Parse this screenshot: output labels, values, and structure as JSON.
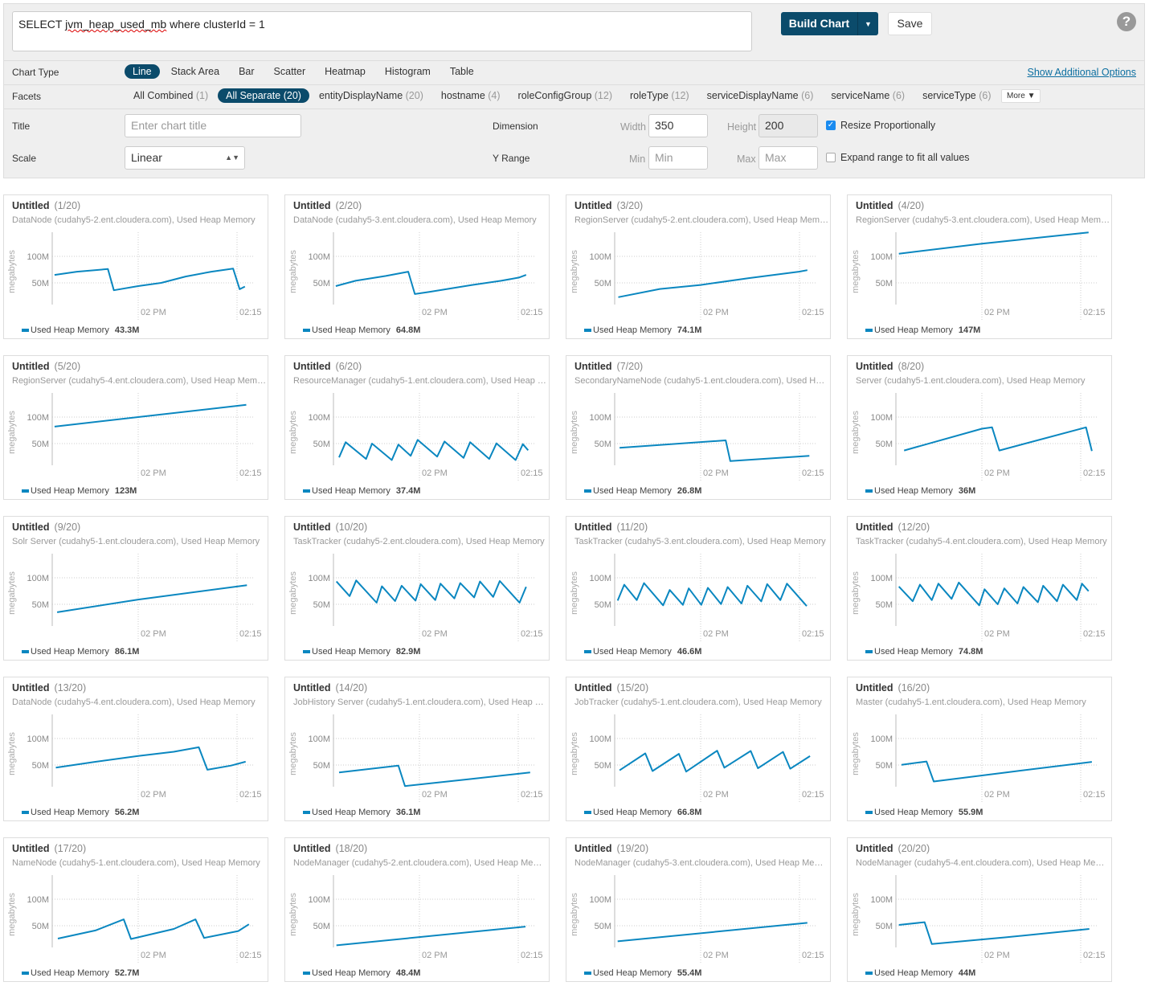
{
  "query": {
    "prefix": "SELECT ",
    "metric": "jvm_heap_used_mb",
    "suffix": " where clusterId = 1"
  },
  "toolbar": {
    "build_label": "Build Chart",
    "save_label": "Save",
    "help": "?"
  },
  "chart_type": {
    "label": "Chart Type",
    "options": [
      "Line",
      "Stack Area",
      "Bar",
      "Scatter",
      "Heatmap",
      "Histogram",
      "Table"
    ],
    "active": "Line",
    "show_options": "Show Additional Options"
  },
  "facets": {
    "label": "Facets",
    "items": [
      {
        "name": "All Combined",
        "count": "(1)"
      },
      {
        "name": "All Separate",
        "count": "(20)",
        "active": true
      },
      {
        "name": "entityDisplayName",
        "count": "(20)"
      },
      {
        "name": "hostname",
        "count": "(4)"
      },
      {
        "name": "roleConfigGroup",
        "count": "(12)"
      },
      {
        "name": "roleType",
        "count": "(12)"
      },
      {
        "name": "serviceDisplayName",
        "count": "(6)"
      },
      {
        "name": "serviceName",
        "count": "(6)"
      },
      {
        "name": "serviceType",
        "count": "(6)"
      }
    ],
    "more": "More"
  },
  "settings": {
    "title_label": "Title",
    "title_placeholder": "Enter chart title",
    "scale_label": "Scale",
    "scale_value": "Linear",
    "dimension_label": "Dimension",
    "width_label": "Width",
    "width_value": "350",
    "height_label": "Height",
    "height_value": "200",
    "resize_label": "Resize Proportionally",
    "resize_checked": true,
    "yrange_label": "Y Range",
    "min_label": "Min",
    "min_placeholder": "Min",
    "max_label": "Max",
    "max_placeholder": "Max",
    "expand_label": "Expand range to fit all values",
    "expand_checked": false
  },
  "colors": {
    "accent": "#0b4b6b",
    "series": "#0a87c0"
  },
  "chart_data": [
    {
      "type": "line",
      "title": "Untitled",
      "index": "(1/20)",
      "subtitle": "DataNode (cudahy5-2.ent.cloudera.com), Used Heap Memory",
      "ylabel": "megabytes",
      "yticks": [
        "50M",
        "100M"
      ],
      "xticks": [
        "02 PM",
        "02:15"
      ],
      "legend": "Used Heap Memory",
      "current": "43.3M",
      "points": [
        [
          "13:47:18",
          65
        ],
        [
          "13:50:42",
          71
        ],
        [
          "13:55:24",
          76
        ],
        [
          "13:56:18",
          36
        ],
        [
          "14:00:00",
          44
        ],
        [
          "14:03:30",
          50
        ],
        [
          "14:07:12",
          62
        ],
        [
          "14:11:06",
          71
        ],
        [
          "14:14:24",
          77
        ],
        [
          "14:15:24",
          38
        ],
        [
          "14:16:12",
          43
        ]
      ]
    },
    {
      "type": "line",
      "title": "Untitled",
      "index": "(2/20)",
      "subtitle": "DataNode (cudahy5-3.ent.cloudera.com), Used Heap Memory",
      "ylabel": "megabytes",
      "yticks": [
        "50M",
        "100M"
      ],
      "xticks": [
        "02 PM",
        "02:15"
      ],
      "legend": "Used Heap Memory",
      "current": "64.8M",
      "points": [
        [
          "13:47:18",
          44
        ],
        [
          "13:50:18",
          54
        ],
        [
          "13:54:54",
          63
        ],
        [
          "13:58:18",
          71
        ],
        [
          "13:59:18",
          29
        ],
        [
          "14:01:30",
          33
        ],
        [
          "14:08:00",
          46
        ],
        [
          "14:12:24",
          54
        ],
        [
          "14:15:06",
          60
        ],
        [
          "14:16:12",
          65
        ]
      ]
    },
    {
      "type": "line",
      "title": "Untitled",
      "index": "(3/20)",
      "subtitle": "RegionServer (cudahy5-2.ent.cloudera.com), Used Heap Mem…",
      "ylabel": "megabytes",
      "yticks": [
        "50M",
        "100M"
      ],
      "xticks": [
        "02 PM",
        "02:15"
      ],
      "legend": "Used Heap Memory",
      "current": "74.1M",
      "points": [
        [
          "13:47:30",
          23
        ],
        [
          "13:53:48",
          38.5
        ],
        [
          "14:00:00",
          46
        ],
        [
          "14:07:18",
          59
        ],
        [
          "14:14:54",
          71
        ],
        [
          "14:16:12",
          74
        ]
      ]
    },
    {
      "type": "line",
      "title": "Untitled",
      "index": "(4/20)",
      "subtitle": "RegionServer (cudahy5-3.ent.cloudera.com), Used Heap Mem…",
      "ylabel": "megabytes",
      "yticks": [
        "50M",
        "100M"
      ],
      "xticks": [
        "02 PM",
        "02:15"
      ],
      "legend": "Used Heap Memory",
      "current": "147M",
      "points": [
        [
          "13:47:24",
          105
        ],
        [
          "14:00:00",
          124
        ],
        [
          "14:16:12",
          145
        ]
      ]
    },
    {
      "type": "line",
      "title": "Untitled",
      "index": "(5/20)",
      "subtitle": "RegionServer (cudahy5-4.ent.cloudera.com), Used Heap Mem…",
      "ylabel": "megabytes",
      "yticks": [
        "50M",
        "100M"
      ],
      "xticks": [
        "02 PM",
        "02:15"
      ],
      "legend": "Used Heap Memory",
      "current": "123M",
      "points": [
        [
          "13:47:18",
          82
        ],
        [
          "14:00:00",
          100
        ],
        [
          "14:16:24",
          123
        ]
      ]
    },
    {
      "type": "line",
      "title": "Untitled",
      "index": "(6/20)",
      "subtitle": "ResourceManager (cudahy5-1.ent.cloudera.com), Used Heap …",
      "ylabel": "megabytes",
      "yticks": [
        "50M",
        "100M"
      ],
      "xticks": [
        "02 PM",
        "02:15"
      ],
      "legend": "Used Heap Memory",
      "current": "37.4M",
      "points": [
        [
          "13:47:48",
          24
        ],
        [
          "13:48:48",
          52.6
        ],
        [
          "13:51:54",
          21
        ],
        [
          "13:52:48",
          50
        ],
        [
          "13:55:48",
          19
        ],
        [
          "13:56:48",
          48
        ],
        [
          "13:58:40",
          27
        ],
        [
          "13:59:44",
          57
        ],
        [
          "14:02:42",
          25.5
        ],
        [
          "14:03:48",
          54
        ],
        [
          "14:06:42",
          23
        ],
        [
          "14:07:42",
          52.6
        ],
        [
          "14:10:36",
          21
        ],
        [
          "14:11:42",
          50.5
        ],
        [
          "14:14:36",
          19
        ],
        [
          "14:15:42",
          49
        ],
        [
          "14:16:30",
          37.4
        ]
      ]
    },
    {
      "type": "line",
      "title": "Untitled",
      "index": "(7/20)",
      "subtitle": "SecondaryNameNode (cudahy5-1.ent.cloudera.com), Used H…",
      "ylabel": "megabytes",
      "yticks": [
        "50M",
        "100M"
      ],
      "xticks": [
        "02 PM",
        "02:15"
      ],
      "legend": "Used Heap Memory",
      "current": "26.8M",
      "points": [
        [
          "13:47:42",
          42
        ],
        [
          "14:03:48",
          56
        ],
        [
          "14:04:30",
          17
        ],
        [
          "14:16:30",
          26.8
        ]
      ]
    },
    {
      "type": "line",
      "title": "Untitled",
      "index": "(8/20)",
      "subtitle": "Server (cudahy5-1.ent.cloudera.com), Used Heap Memory",
      "ylabel": "megabytes",
      "yticks": [
        "50M",
        "100M"
      ],
      "xticks": [
        "02 PM",
        "02:15"
      ],
      "legend": "Used Heap Memory",
      "current": "36M",
      "points": [
        [
          "13:48:12",
          37
        ],
        [
          "14:00:00",
          78
        ],
        [
          "14:01:33",
          80.6
        ],
        [
          "14:02:39",
          37
        ],
        [
          "14:15:48",
          80.6
        ],
        [
          "14:16:42",
          36
        ]
      ]
    },
    {
      "type": "line",
      "title": "Untitled",
      "index": "(9/20)",
      "subtitle": "Solr Server (cudahy5-1.ent.cloudera.com), Used Heap Memory",
      "ylabel": "megabytes",
      "yticks": [
        "50M",
        "100M"
      ],
      "xticks": [
        "02 PM",
        "02:15"
      ],
      "legend": "Used Heap Memory",
      "current": "86.1M",
      "points": [
        [
          "13:47:42",
          35
        ],
        [
          "14:00:00",
          59
        ],
        [
          "14:16:30",
          86.1
        ]
      ]
    },
    {
      "type": "line",
      "title": "Untitled",
      "index": "(10/20)",
      "subtitle": "TaskTracker (cudahy5-2.ent.cloudera.com), Used Heap Memory",
      "ylabel": "megabytes",
      "yticks": [
        "50M",
        "100M"
      ],
      "xticks": [
        "02 PM",
        "02:15"
      ],
      "legend": "Used Heap Memory",
      "current": "82.9M",
      "points": [
        [
          "13:47:24",
          93
        ],
        [
          "13:49:24",
          65.5
        ],
        [
          "13:50:24",
          95
        ],
        [
          "13:53:30",
          53
        ],
        [
          "13:54:18",
          84
        ],
        [
          "13:56:18",
          56
        ],
        [
          "13:57:18",
          85
        ],
        [
          "13:59:24",
          57
        ],
        [
          "14:00:12",
          88
        ],
        [
          "14:02:24",
          58
        ],
        [
          "14:03:12",
          89
        ],
        [
          "14:05:18",
          61
        ],
        [
          "14:06:12",
          90
        ],
        [
          "14:08:18",
          63
        ],
        [
          "14:09:12",
          93
        ],
        [
          "14:11:12",
          64
        ],
        [
          "14:12:12",
          94
        ],
        [
          "14:15:12",
          53
        ],
        [
          "14:16:12",
          82.9
        ]
      ]
    },
    {
      "type": "line",
      "title": "Untitled",
      "index": "(11/20)",
      "subtitle": "TaskTracker (cudahy5-3.ent.cloudera.com), Used Heap Memory",
      "ylabel": "megabytes",
      "yticks": [
        "50M",
        "100M"
      ],
      "xticks": [
        "02 PM",
        "02:15"
      ],
      "legend": "Used Heap Memory",
      "current": "46.6M",
      "points": [
        [
          "13:47:24",
          57
        ],
        [
          "13:48:24",
          87
        ],
        [
          "13:50:18",
          58
        ],
        [
          "13:51:24",
          90
        ],
        [
          "13:54:18",
          48
        ],
        [
          "13:55:18",
          77
        ],
        [
          "13:57:18",
          49
        ],
        [
          "13:58:12",
          80
        ],
        [
          "14:00:06",
          49
        ],
        [
          "14:01:06",
          81
        ],
        [
          "14:03:06",
          50.5
        ],
        [
          "14:04:06",
          82.5
        ],
        [
          "14:06:12",
          51.5
        ],
        [
          "14:07:06",
          85
        ],
        [
          "14:09:12",
          55.5
        ],
        [
          "14:10:06",
          88
        ],
        [
          "14:12:06",
          58
        ],
        [
          "14:13:06",
          89
        ],
        [
          "14:16:06",
          46.6
        ]
      ]
    },
    {
      "type": "line",
      "title": "Untitled",
      "index": "(12/20)",
      "subtitle": "TaskTracker (cudahy5-4.ent.cloudera.com), Used Heap Memory",
      "ylabel": "megabytes",
      "yticks": [
        "50M",
        "100M"
      ],
      "xticks": [
        "02 PM",
        "02:15"
      ],
      "legend": "Used Heap Memory",
      "current": "74.8M",
      "points": [
        [
          "13:47:24",
          83.5
        ],
        [
          "13:49:30",
          55.7
        ],
        [
          "13:50:36",
          87
        ],
        [
          "13:52:24",
          58
        ],
        [
          "13:53:24",
          89
        ],
        [
          "13:55:24",
          60.3
        ],
        [
          "13:56:30",
          91
        ],
        [
          "13:59:36",
          48
        ],
        [
          "14:00:24",
          78.4
        ],
        [
          "14:02:24",
          50
        ],
        [
          "14:03:24",
          80
        ],
        [
          "14:05:24",
          51.5
        ],
        [
          "14:06:18",
          82.5
        ],
        [
          "14:08:30",
          54
        ],
        [
          "14:09:18",
          85
        ],
        [
          "14:11:24",
          55.7
        ],
        [
          "14:12:18",
          87
        ],
        [
          "14:14:24",
          58
        ],
        [
          "14:15:12",
          89
        ],
        [
          "14:16:12",
          74.8
        ]
      ]
    },
    {
      "type": "line",
      "title": "Untitled",
      "index": "(13/20)",
      "subtitle": "DataNode (cudahy5-4.ent.cloudera.com), Used Heap Memory",
      "ylabel": "megabytes",
      "yticks": [
        "50M",
        "100M"
      ],
      "xticks": [
        "02 PM",
        "02:15"
      ],
      "legend": "Used Heap Memory",
      "current": "56.2M",
      "points": [
        [
          "13:47:30",
          45
        ],
        [
          "13:53:30",
          56
        ],
        [
          "14:00:00",
          67
        ],
        [
          "14:05:24",
          75
        ],
        [
          "14:09:12",
          83.5
        ],
        [
          "14:10:30",
          41
        ],
        [
          "14:14:06",
          49
        ],
        [
          "14:16:18",
          56.2
        ]
      ]
    },
    {
      "type": "line",
      "title": "Untitled",
      "index": "(14/20)",
      "subtitle": "JobHistory Server (cudahy5-1.ent.cloudera.com), Used Heap …",
      "ylabel": "megabytes",
      "yticks": [
        "50M",
        "100M"
      ],
      "xticks": [
        "02 PM",
        "02:15"
      ],
      "legend": "Used Heap Memory",
      "current": "36.1M",
      "points": [
        [
          "13:47:48",
          36
        ],
        [
          "13:56:48",
          49
        ],
        [
          "13:57:48",
          10.3
        ],
        [
          "14:07:24",
          23
        ],
        [
          "14:16:48",
          36.1
        ]
      ]
    },
    {
      "type": "line",
      "title": "Untitled",
      "index": "(15/20)",
      "subtitle": "JobTracker (cudahy5-1.ent.cloudera.com), Used Heap Memory",
      "ylabel": "megabytes",
      "yticks": [
        "50M",
        "100M"
      ],
      "xticks": [
        "02 PM",
        "02:15"
      ],
      "legend": "Used Heap Memory",
      "current": "66.8M",
      "points": [
        [
          "13:47:42",
          40
        ],
        [
          "13:51:36",
          72
        ],
        [
          "13:52:42",
          38.7
        ],
        [
          "13:56:42",
          71
        ],
        [
          "13:57:48",
          37.6
        ],
        [
          "14:02:30",
          77
        ],
        [
          "14:03:36",
          45
        ],
        [
          "14:07:36",
          76.5
        ],
        [
          "14:08:42",
          44
        ],
        [
          "14:12:30",
          74.7
        ],
        [
          "14:13:36",
          43
        ],
        [
          "14:16:36",
          66.8
        ]
      ]
    },
    {
      "type": "line",
      "title": "Untitled",
      "index": "(16/20)",
      "subtitle": "Master (cudahy5-1.ent.cloudera.com), Used Heap Memory",
      "ylabel": "megabytes",
      "yticks": [
        "50M",
        "100M"
      ],
      "xticks": [
        "02 PM",
        "02:15"
      ],
      "legend": "Used Heap Memory",
      "current": "55.9M",
      "points": [
        [
          "13:47:48",
          50.5
        ],
        [
          "13:51:36",
          56.7
        ],
        [
          "13:52:42",
          19
        ],
        [
          "14:03:42",
          36
        ],
        [
          "14:16:42",
          55.9
        ]
      ]
    },
    {
      "type": "line",
      "title": "Untitled",
      "index": "(17/20)",
      "subtitle": "NameNode (cudahy5-1.ent.cloudera.com), Used Heap Memory",
      "ylabel": "megabytes",
      "yticks": [
        "50M",
        "100M"
      ],
      "xticks": [
        "02 PM",
        "02:15"
      ],
      "legend": "Used Heap Memory",
      "current": "52.7M",
      "points": [
        [
          "13:47:48",
          25.8
        ],
        [
          "13:53:30",
          41
        ],
        [
          "13:57:48",
          62
        ],
        [
          "13:58:54",
          25
        ],
        [
          "14:05:24",
          44
        ],
        [
          "14:08:42",
          62
        ],
        [
          "14:10:00",
          27
        ],
        [
          "14:15:12",
          40
        ],
        [
          "14:16:48",
          52.7
        ]
      ]
    },
    {
      "type": "line",
      "title": "Untitled",
      "index": "(18/20)",
      "subtitle": "NodeManager (cudahy5-2.ent.cloudera.com), Used Heap Me…",
      "ylabel": "megabytes",
      "yticks": [
        "50M",
        "100M"
      ],
      "xticks": [
        "02 PM",
        "02:15"
      ],
      "legend": "Used Heap Memory",
      "current": "48.4M",
      "points": [
        [
          "13:47:24",
          13
        ],
        [
          "14:16:06",
          48.4
        ]
      ]
    },
    {
      "type": "line",
      "title": "Untitled",
      "index": "(19/20)",
      "subtitle": "NodeManager (cudahy5-3.ent.cloudera.com), Used Heap Me…",
      "ylabel": "megabytes",
      "yticks": [
        "50M",
        "100M"
      ],
      "xticks": [
        "02 PM",
        "02:15"
      ],
      "legend": "Used Heap Memory",
      "current": "55.4M",
      "points": [
        [
          "13:47:24",
          20.6
        ],
        [
          "14:16:12",
          55.4
        ]
      ]
    },
    {
      "type": "line",
      "title": "Untitled",
      "index": "(20/20)",
      "subtitle": "NodeManager (cudahy5-4.ent.cloudera.com), Used Heap Me…",
      "ylabel": "megabytes",
      "yticks": [
        "50M",
        "100M"
      ],
      "xticks": [
        "02 PM",
        "02:15"
      ],
      "legend": "Used Heap Memory",
      "current": "44M",
      "points": [
        [
          "13:47:24",
          51.5
        ],
        [
          "13:51:18",
          56.7
        ],
        [
          "13:52:24",
          15.5
        ],
        [
          "14:03:30",
          28
        ],
        [
          "14:16:18",
          44
        ]
      ]
    }
  ]
}
